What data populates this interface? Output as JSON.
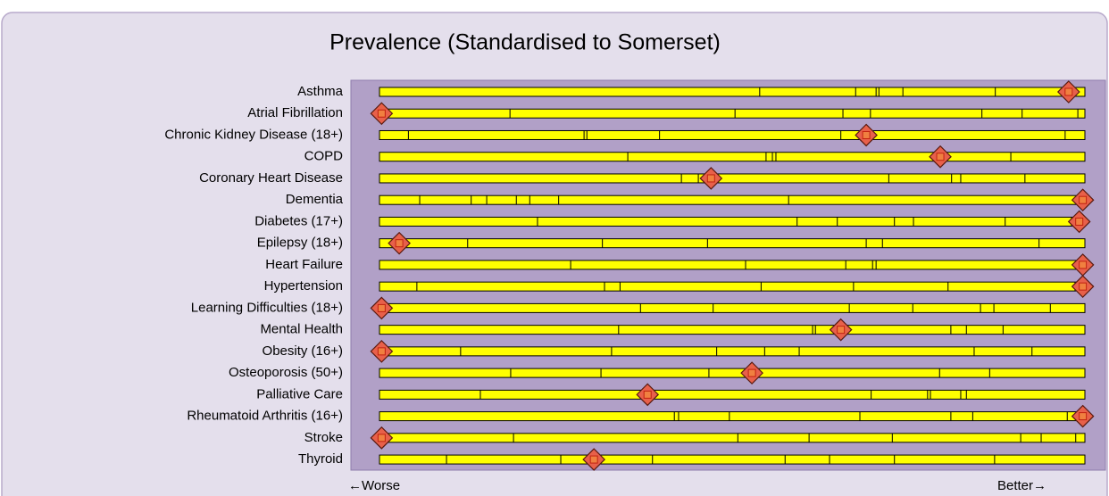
{
  "chart_data": {
    "type": "spine",
    "title": "Prevalence (Standardised to Somerset)",
    "categories": [
      "Asthma",
      "Atrial Fibrillation",
      "Chronic Kidney Disease (18+)",
      "COPD",
      "Coronary Heart Disease",
      "Dementia",
      "Diabetes (17+)",
      "Epilepsy (18+)",
      "Heart Failure",
      "Hypertension",
      "Learning Difficulties (18+)",
      "Mental Health",
      "Obesity (16+)",
      "Osteoporosis (50+)",
      "Palliative Care",
      "Rheumatoid Arthritis (16+)",
      "Stroke",
      "Thyroid"
    ],
    "values": [
      97.7,
      0.3,
      69,
      79.5,
      47,
      99.7,
      99.2,
      2.8,
      99.7,
      99.7,
      0.3,
      65.4,
      0.3,
      52.8,
      38,
      99.7,
      0.3,
      30.4
    ],
    "dividers": [
      [
        53.9,
        67.5,
        70.4,
        70.8,
        74.2,
        87.3
      ],
      [
        18.5,
        50.4,
        65.7,
        69.6,
        85.4,
        91.1,
        99
      ],
      [
        4.1,
        29,
        29.4,
        39.7,
        65.4,
        97.2
      ],
      [
        35.2,
        54.8,
        55.7,
        56.2,
        89.5
      ],
      [
        42.8,
        45.2,
        72.2,
        81.1,
        82.4,
        91.5
      ],
      [
        5.7,
        13,
        15.2,
        19.4,
        21.3,
        25.4,
        58
      ],
      [
        22.4,
        59.2,
        64.9,
        73,
        75.7,
        88.7,
        98.1
      ],
      [
        12.5,
        31.6,
        46.5,
        69,
        71.3,
        93.5
      ],
      [
        27.1,
        51.9,
        66.1,
        69.9,
        70.4,
        99.1
      ],
      [
        5.3,
        31.9,
        34.1,
        54.1,
        67.2,
        80.6,
        98.6
      ],
      [
        37,
        47.3,
        66.6,
        75.6,
        85.2,
        87.1,
        95.1
      ],
      [
        33.9,
        61.4,
        61.8,
        81,
        83.2,
        88.4
      ],
      [
        11.5,
        32.9,
        47.8,
        54.6,
        59.5,
        84.3,
        92.5
      ],
      [
        18.6,
        31.4,
        46.7,
        79.4,
        86.5
      ],
      [
        14.3,
        69.7,
        77.7,
        78.1,
        82.4,
        83.2
      ],
      [
        41.8,
        42.4,
        49.6,
        68.1,
        81,
        84.1,
        97.5
      ],
      [
        19,
        50.8,
        60.9,
        72.7,
        90.9,
        93.8,
        98.7
      ],
      [
        9.5,
        25.7,
        38.7,
        57.5,
        63.8,
        73,
        87.2
      ]
    ],
    "xlim": [
      0,
      100
    ],
    "x_label_left": "←Worse",
    "x_label_right": "Better→",
    "bar_color": "#ffff00",
    "marker_color": "#e8604a"
  }
}
